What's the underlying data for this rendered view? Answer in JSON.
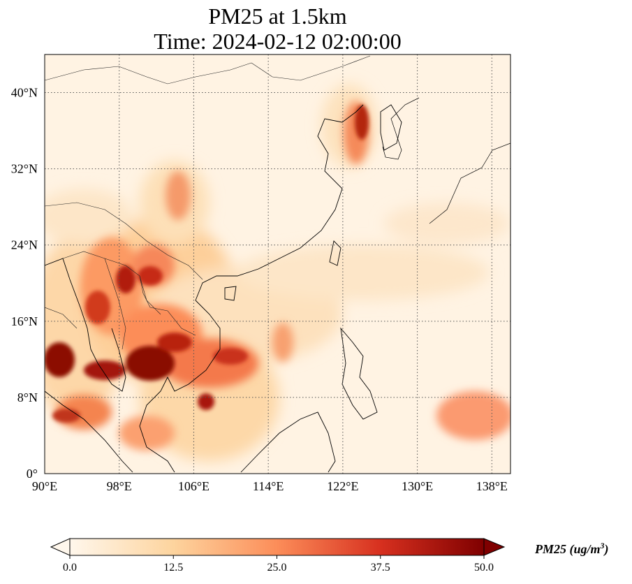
{
  "title": {
    "line1": "PM25 at 1.5km",
    "line2": "Time: 2024-02-12 02:00:00"
  },
  "map": {
    "type": "heatmap",
    "variable": "PM25",
    "lon_range": [
      90,
      140
    ],
    "lat_range": [
      0,
      44
    ],
    "x_ticks": [
      "90°E",
      "98°E",
      "106°E",
      "114°E",
      "122°E",
      "130°E",
      "138°E"
    ],
    "y_ticks": [
      "0°",
      "8°N",
      "16°N",
      "24°N",
      "32°N",
      "40°N"
    ],
    "gridlines": true,
    "grid_style": "dotted",
    "features": [
      "coastlines",
      "country borders"
    ]
  },
  "colorbar": {
    "ticks": [
      "0.0",
      "12.5",
      "25.0",
      "37.5",
      "50.0"
    ],
    "range": [
      0,
      50
    ],
    "colormap": "OrRd",
    "extend": "both",
    "label_main": "PM25 (ug/m",
    "label_sup": "3",
    "label_end": ")"
  },
  "chart_data": {
    "type": "heatmap",
    "title": "PM25 at 1.5km",
    "subtitle": "Time: 2024-02-12 02:00:00",
    "units": "ug/m3",
    "value_range": [
      0,
      50
    ],
    "colors": [
      "#fff7ec",
      "#fdd49e",
      "#fc8d59",
      "#d7301f",
      "#7f0000"
    ],
    "hotspots": [
      {
        "lon": 93,
        "lat": 12,
        "value": 50
      },
      {
        "lon": 101,
        "lat": 13,
        "value": 50
      },
      {
        "lon": 98,
        "lat": 20,
        "value": 45
      },
      {
        "lon": 102,
        "lat": 21,
        "value": 40
      },
      {
        "lon": 107,
        "lat": 14,
        "value": 38
      },
      {
        "lon": 108,
        "lat": 8,
        "value": 42
      },
      {
        "lon": 124.5,
        "lat": 38,
        "value": 38
      },
      {
        "lon": 96,
        "lat": 6,
        "value": 35
      },
      {
        "lon": 110,
        "lat": 11,
        "value": 30
      },
      {
        "lon": 115,
        "lat": 15,
        "value": 22
      },
      {
        "lon": 135,
        "lat": 6,
        "value": 25
      },
      {
        "lon": 103,
        "lat": 30,
        "value": 22
      }
    ]
  }
}
